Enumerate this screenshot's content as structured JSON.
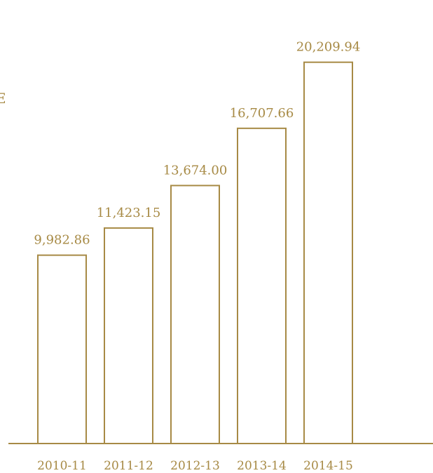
{
  "edge_text": "E",
  "chart_data": {
    "type": "bar",
    "categories": [
      "2010-11",
      "2011-12",
      "2012-13",
      "2013-14",
      "2014-15"
    ],
    "values": [
      9982.86,
      11423.15,
      13674.0,
      16707.66,
      20209.94
    ],
    "data_labels": [
      "9,982.86",
      "11,423.15",
      "13,674.00",
      "16,707.66",
      "20,209.94"
    ],
    "title": "",
    "xlabel": "",
    "ylabel": "",
    "ylim": [
      0,
      21500
    ],
    "grid": false,
    "bar_style": "outline",
    "colors": {
      "bar_stroke": "#a78a45",
      "bar_fill": "#ffffff",
      "axis": "#a78a45",
      "text": "#a78a45"
    }
  }
}
